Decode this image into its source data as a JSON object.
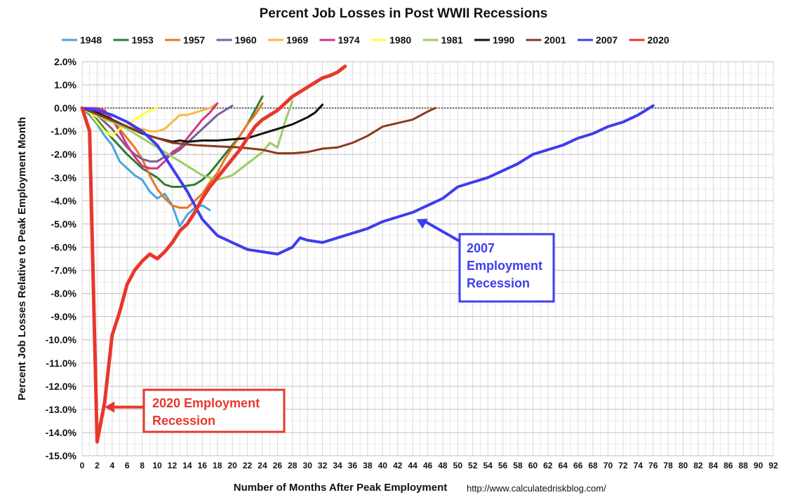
{
  "chart_data": {
    "type": "line",
    "title": "Percent Job Losses in Post WWII Recessions",
    "xlabel": "Number of Months After Peak Employment",
    "ylabel": "Percent Job Losses Relative to Peak Employment Month",
    "source": "http://www.calculatedriskblog.com/",
    "xlim": [
      0,
      92
    ],
    "ylim": [
      -15,
      2
    ],
    "x_ticks": [
      "0",
      "2",
      "4",
      "6",
      "8",
      "10",
      "12",
      "14",
      "16",
      "18",
      "20",
      "22",
      "24",
      "26",
      "28",
      "30",
      "32",
      "34",
      "36",
      "38",
      "40",
      "42",
      "44",
      "46",
      "48",
      "50",
      "52",
      "54",
      "56",
      "58",
      "60",
      "62",
      "64",
      "66",
      "68",
      "70",
      "72",
      "74",
      "76",
      "78",
      "80",
      "82",
      "84",
      "86",
      "88",
      "90",
      "92"
    ],
    "y_ticks": [
      "2.0%",
      "1.0%",
      "0.0%",
      "-1.0%",
      "-2.0%",
      "-3.0%",
      "-4.0%",
      "-5.0%",
      "-6.0%",
      "-7.0%",
      "-8.0%",
      "-9.0%",
      "-10.0%",
      "-11.0%",
      "-12.0%",
      "-13.0%",
      "-14.0%",
      "-15.0%"
    ],
    "grid": true,
    "legend": "top",
    "series": [
      {
        "name": "1948",
        "color": "#4aa3df",
        "width": 3,
        "x": [
          0,
          1,
          2,
          3,
          4,
          5,
          6,
          7,
          8,
          9,
          10,
          11,
          12,
          13,
          14,
          15,
          16,
          17
        ],
        "y": [
          0,
          -0.3,
          -0.7,
          -1.2,
          -1.6,
          -2.3,
          -2.6,
          -2.9,
          -3.1,
          -3.6,
          -3.9,
          -3.7,
          -4.2,
          -5.1,
          -4.6,
          -4.3,
          -4.2,
          -4.4
        ]
      },
      {
        "name": "1953",
        "color": "#2e7d32",
        "width": 3,
        "x": [
          0,
          2,
          4,
          6,
          8,
          10,
          11,
          12,
          13,
          14,
          15,
          16,
          17,
          18,
          19,
          20,
          21,
          22,
          23,
          24
        ],
        "y": [
          0,
          -0.5,
          -1.3,
          -2.0,
          -2.6,
          -3.0,
          -3.3,
          -3.4,
          -3.4,
          -3.35,
          -3.3,
          -3.1,
          -2.8,
          -2.4,
          -2.0,
          -1.6,
          -1.2,
          -0.7,
          -0.1,
          0.5
        ]
      },
      {
        "name": "1957",
        "color": "#e87722",
        "width": 3,
        "x": [
          0,
          1,
          2,
          3,
          4,
          5,
          6,
          7,
          8,
          9,
          10,
          11,
          12,
          13,
          14,
          15,
          16,
          17,
          18,
          19,
          20,
          21,
          22,
          23,
          24
        ],
        "y": [
          0,
          -0.1,
          -0.2,
          -0.3,
          -0.5,
          -0.9,
          -1.3,
          -1.7,
          -2.2,
          -2.9,
          -3.5,
          -3.9,
          -4.2,
          -4.3,
          -4.3,
          -4.0,
          -3.7,
          -3.2,
          -2.8,
          -2.2,
          -1.7,
          -1.2,
          -0.7,
          -0.3,
          0.2
        ]
      },
      {
        "name": "1960",
        "color": "#7b5e93",
        "width": 3,
        "x": [
          0,
          1,
          2,
          3,
          4,
          5,
          6,
          7,
          8,
          9,
          10,
          11,
          12,
          13,
          14,
          15,
          16,
          17,
          18,
          19,
          20
        ],
        "y": [
          0,
          -0.2,
          -0.3,
          -0.6,
          -0.9,
          -1.3,
          -1.7,
          -2.0,
          -2.2,
          -2.3,
          -2.3,
          -2.1,
          -2.0,
          -1.8,
          -1.5,
          -1.2,
          -0.9,
          -0.6,
          -0.3,
          -0.1,
          0.1
        ]
      },
      {
        "name": "1969",
        "color": "#f5b942",
        "width": 3,
        "x": [
          0,
          1,
          2,
          3,
          4,
          5,
          6,
          7,
          8,
          9,
          10,
          11,
          12,
          13,
          14,
          15,
          16,
          17,
          18
        ],
        "y": [
          0,
          -0.2,
          -0.3,
          -0.5,
          -0.6,
          -0.7,
          -0.8,
          -0.9,
          -0.9,
          -1.0,
          -1.0,
          -0.9,
          -0.6,
          -0.3,
          -0.3,
          -0.2,
          -0.1,
          0,
          0.2
        ]
      },
      {
        "name": "1974",
        "color": "#d63384",
        "width": 3,
        "x": [
          0,
          1,
          2,
          3,
          4,
          5,
          6,
          7,
          8,
          9,
          10,
          11,
          12,
          13,
          14,
          15,
          16,
          17,
          18
        ],
        "y": [
          0,
          0,
          0,
          -0.1,
          -0.5,
          -1.0,
          -1.6,
          -2.1,
          -2.5,
          -2.6,
          -2.6,
          -2.3,
          -1.9,
          -1.7,
          -1.3,
          -0.9,
          -0.5,
          -0.2,
          0.2
        ]
      },
      {
        "name": "1980",
        "color": "#ffff3c",
        "width": 3,
        "x": [
          0,
          1,
          2,
          3,
          4,
          5,
          6,
          7,
          8,
          9,
          10
        ],
        "y": [
          0,
          -0.2,
          -0.6,
          -1.0,
          -1.2,
          -0.9,
          -0.7,
          -0.5,
          -0.3,
          -0.1,
          0
        ]
      },
      {
        "name": "1981",
        "color": "#9ccc65",
        "width": 3,
        "x": [
          0,
          2,
          4,
          6,
          8,
          10,
          12,
          14,
          16,
          18,
          20,
          22,
          24,
          25,
          26,
          27,
          28
        ],
        "y": [
          0,
          -0.3,
          -0.6,
          -0.9,
          -1.3,
          -1.7,
          -2.1,
          -2.5,
          -2.9,
          -3.1,
          -2.9,
          -2.4,
          -1.9,
          -1.5,
          -1.7,
          -0.6,
          0.3
        ]
      },
      {
        "name": "1990",
        "color": "#111111",
        "width": 3,
        "x": [
          0,
          2,
          4,
          6,
          8,
          10,
          12,
          13,
          14,
          16,
          18,
          20,
          22,
          24,
          26,
          28,
          30,
          31,
          32
        ],
        "y": [
          0,
          -0.2,
          -0.5,
          -0.8,
          -1.1,
          -1.3,
          -1.45,
          -1.4,
          -1.45,
          -1.4,
          -1.4,
          -1.35,
          -1.3,
          -1.1,
          -0.9,
          -0.7,
          -0.4,
          -0.2,
          0.15
        ]
      },
      {
        "name": "2001",
        "color": "#8b3a1a",
        "width": 3,
        "x": [
          0,
          3,
          6,
          9,
          12,
          15,
          18,
          21,
          24,
          26,
          28,
          30,
          32,
          34,
          36,
          38,
          40,
          42,
          44,
          46,
          47
        ],
        "y": [
          0,
          -0.4,
          -0.8,
          -1.2,
          -1.5,
          -1.6,
          -1.65,
          -1.7,
          -1.8,
          -1.95,
          -1.95,
          -1.9,
          -1.75,
          -1.7,
          -1.5,
          -1.2,
          -0.8,
          -0.65,
          -0.5,
          -0.15,
          0
        ]
      },
      {
        "name": "2007",
        "color": "#3d3df0",
        "width": 4,
        "x": [
          0,
          2,
          4,
          6,
          8,
          10,
          12,
          14,
          16,
          18,
          20,
          22,
          24,
          26,
          28,
          29,
          30,
          32,
          34,
          36,
          38,
          40,
          42,
          44,
          46,
          48,
          50,
          52,
          54,
          56,
          58,
          60,
          62,
          64,
          66,
          68,
          70,
          72,
          74,
          75,
          76
        ],
        "y": [
          0,
          -0.1,
          -0.3,
          -0.6,
          -1.0,
          -1.6,
          -2.6,
          -3.6,
          -4.8,
          -5.5,
          -5.8,
          -6.1,
          -6.2,
          -6.3,
          -6.0,
          -5.6,
          -5.7,
          -5.8,
          -5.6,
          -5.4,
          -5.2,
          -4.9,
          -4.7,
          -4.5,
          -4.2,
          -3.9,
          -3.4,
          -3.2,
          -3.0,
          -2.7,
          -2.4,
          -2.0,
          -1.8,
          -1.6,
          -1.3,
          -1.1,
          -0.8,
          -0.6,
          -0.3,
          -0.1,
          0.1
        ]
      },
      {
        "name": "2020",
        "color": "#e8372c",
        "width": 5,
        "x": [
          0,
          1,
          2,
          3,
          4,
          5,
          6,
          7,
          8,
          9,
          10,
          11,
          12,
          13,
          14,
          15,
          16,
          17,
          18,
          19,
          20,
          21,
          22,
          23,
          24,
          25,
          26,
          27,
          28,
          29,
          30,
          31,
          32,
          33,
          34,
          35
        ],
        "y": [
          0,
          -1.0,
          -14.4,
          -12.7,
          -9.8,
          -8.8,
          -7.6,
          -7.0,
          -6.6,
          -6.3,
          -6.5,
          -6.2,
          -5.8,
          -5.3,
          -5.0,
          -4.5,
          -3.9,
          -3.4,
          -3.0,
          -2.6,
          -2.2,
          -1.8,
          -1.3,
          -0.8,
          -0.5,
          -0.3,
          -0.1,
          0.2,
          0.5,
          0.7,
          0.9,
          1.1,
          1.3,
          1.4,
          1.55,
          1.8
        ]
      }
    ],
    "annotations": [
      {
        "lines": [
          "2020 Employment",
          "Recession"
        ],
        "color": "#e8372c",
        "arrow_to": {
          "x": 3,
          "y": -12.9
        }
      },
      {
        "lines": [
          "2007",
          "Employment",
          "Recession"
        ],
        "color": "#3d3df0",
        "arrow_to": {
          "x": 44.5,
          "y": -4.8
        }
      }
    ]
  }
}
